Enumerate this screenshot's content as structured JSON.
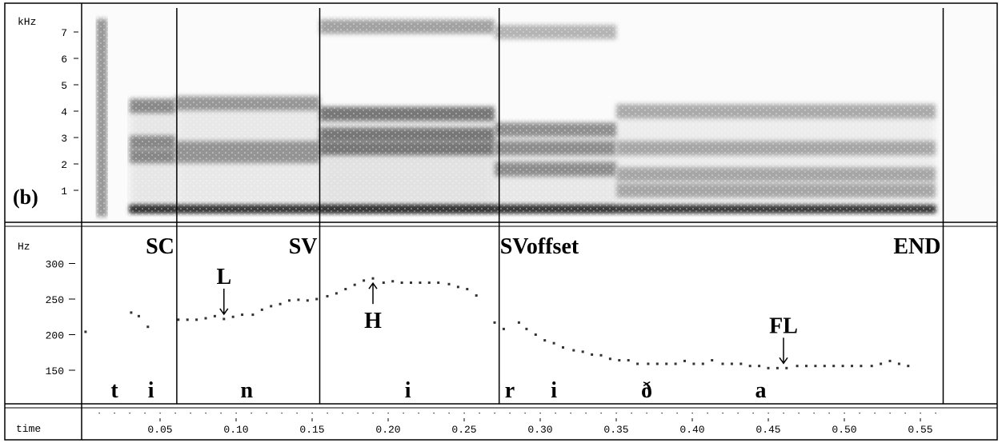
{
  "chart_data": [
    {
      "type": "heatmap",
      "panel_label": "(b)",
      "ylabel": "kHz",
      "yticks": [
        "1",
        "2",
        "3",
        "4",
        "5",
        "6",
        "7"
      ],
      "ylim": [
        0,
        8
      ],
      "xlim": [
        0,
        0.57
      ],
      "formant_bands_khz": [
        {
          "segment": "i",
          "x": [
            0.03,
            0.06
          ],
          "f": [
            0.3,
            2.3,
            2.8,
            4.2
          ],
          "strength": 0.85
        },
        {
          "segment": "n",
          "x": [
            0.06,
            0.155
          ],
          "f": [
            0.3,
            2.3,
            2.6,
            4.3
          ],
          "strength": 0.75
        },
        {
          "segment": "i",
          "x": [
            0.155,
            0.27
          ],
          "f": [
            0.3,
            2.6,
            3.1,
            3.9,
            7.2
          ],
          "strength": 1.0
        },
        {
          "segment": "r i",
          "x": [
            0.27,
            0.35
          ],
          "f": [
            0.3,
            1.8,
            2.6,
            3.3,
            7.0
          ],
          "strength": 0.8
        },
        {
          "segment": "ð a",
          "x": [
            0.35,
            0.56
          ],
          "f": [
            0.3,
            1.0,
            1.6,
            2.6,
            4.0
          ],
          "strength": 0.6
        }
      ]
    },
    {
      "type": "scatter",
      "ylabel": "Hz",
      "yticks": [
        150,
        200,
        250,
        300
      ],
      "ylim": [
        110,
        330
      ],
      "xlim": [
        0,
        0.57
      ],
      "series": [
        {
          "values": [
            [
              0.001,
              204
            ],
            [
              0.031,
              231
            ],
            [
              0.036,
              226
            ],
            [
              0.042,
              211
            ],
            [
              0.062,
              221
            ],
            [
              0.068,
              221
            ],
            [
              0.074,
              221
            ],
            [
              0.08,
              223
            ],
            [
              0.086,
              226
            ],
            [
              0.092,
              222
            ],
            [
              0.098,
              225
            ],
            [
              0.104,
              228
            ],
            [
              0.111,
              228
            ],
            [
              0.117,
              235
            ],
            [
              0.123,
              240
            ],
            [
              0.129,
              243
            ],
            [
              0.135,
              248
            ],
            [
              0.141,
              249
            ],
            [
              0.147,
              248
            ],
            [
              0.153,
              250
            ],
            [
              0.16,
              254
            ],
            [
              0.166,
              258
            ],
            [
              0.172,
              264
            ],
            [
              0.178,
              270
            ],
            [
              0.184,
              276
            ],
            [
              0.19,
              279
            ],
            [
              0.197,
              273
            ],
            [
              0.203,
              275
            ],
            [
              0.209,
              273
            ],
            [
              0.215,
              273
            ],
            [
              0.221,
              273
            ],
            [
              0.227,
              273
            ],
            [
              0.233,
              273
            ],
            [
              0.24,
              271
            ],
            [
              0.246,
              267
            ],
            [
              0.252,
              264
            ],
            [
              0.258,
              255
            ],
            [
              0.27,
              217
            ],
            [
              0.276,
              208
            ],
            [
              0.286,
              217
            ],
            [
              0.291,
              208
            ],
            [
              0.297,
              200
            ],
            [
              0.303,
              192
            ],
            [
              0.309,
              188
            ],
            [
              0.315,
              182
            ],
            [
              0.322,
              178
            ],
            [
              0.328,
              176
            ],
            [
              0.334,
              172
            ],
            [
              0.34,
              171
            ],
            [
              0.346,
              166
            ],
            [
              0.352,
              164
            ],
            [
              0.358,
              164
            ],
            [
              0.364,
              159
            ],
            [
              0.371,
              159
            ],
            [
              0.377,
              159
            ],
            [
              0.383,
              159
            ],
            [
              0.389,
              159
            ],
            [
              0.395,
              163
            ],
            [
              0.401,
              159
            ],
            [
              0.407,
              159
            ],
            [
              0.413,
              164
            ],
            [
              0.42,
              159
            ],
            [
              0.426,
              159
            ],
            [
              0.432,
              159
            ],
            [
              0.438,
              156
            ],
            [
              0.444,
              156
            ],
            [
              0.45,
              153
            ],
            [
              0.456,
              153
            ],
            [
              0.462,
              153
            ],
            [
              0.469,
              156
            ],
            [
              0.475,
              156
            ],
            [
              0.481,
              156
            ],
            [
              0.487,
              156
            ],
            [
              0.493,
              156
            ],
            [
              0.499,
              156
            ],
            [
              0.505,
              156
            ],
            [
              0.511,
              156
            ],
            [
              0.518,
              156
            ],
            [
              0.524,
              159
            ],
            [
              0.53,
              163
            ],
            [
              0.536,
              159
            ],
            [
              0.542,
              156
            ]
          ]
        }
      ],
      "annotations": [
        {
          "text": "L",
          "x": 0.092,
          "y": 222,
          "arrow": "down"
        },
        {
          "text": "H",
          "x": 0.19,
          "y": 279,
          "arrow": "up"
        },
        {
          "text": "FL",
          "x": 0.46,
          "y": 153,
          "arrow": "down"
        }
      ],
      "boundary_labels": [
        {
          "text": "SC",
          "x": 0.061
        },
        {
          "text": "SV",
          "x": 0.155
        },
        {
          "text": "SVoffset",
          "x": 0.273
        },
        {
          "text": "END",
          "x": 0.565
        }
      ],
      "segment_labels": [
        {
          "text": "t",
          "x": 0.02
        },
        {
          "text": "i",
          "x": 0.044
        },
        {
          "text": "n",
          "x": 0.107
        },
        {
          "text": "i",
          "x": 0.213
        },
        {
          "text": "r",
          "x": 0.28
        },
        {
          "text": "i",
          "x": 0.309
        },
        {
          "text": "ð",
          "x": 0.37
        },
        {
          "text": "a",
          "x": 0.445
        }
      ]
    },
    {
      "type": "axis",
      "xlabel": "time",
      "xticks": [
        "0.05",
        "0.10",
        "0.15",
        "0.20",
        "0.25",
        "0.30",
        "0.35",
        "0.40",
        "0.45",
        "0.50",
        "0.55"
      ],
      "xtick_values": [
        0.05,
        0.1,
        0.15,
        0.2,
        0.25,
        0.3,
        0.35,
        0.4,
        0.45,
        0.5,
        0.55
      ],
      "minor_step": 0.01
    }
  ],
  "boundary_times": [
    0.061,
    0.155,
    0.273,
    0.565
  ]
}
